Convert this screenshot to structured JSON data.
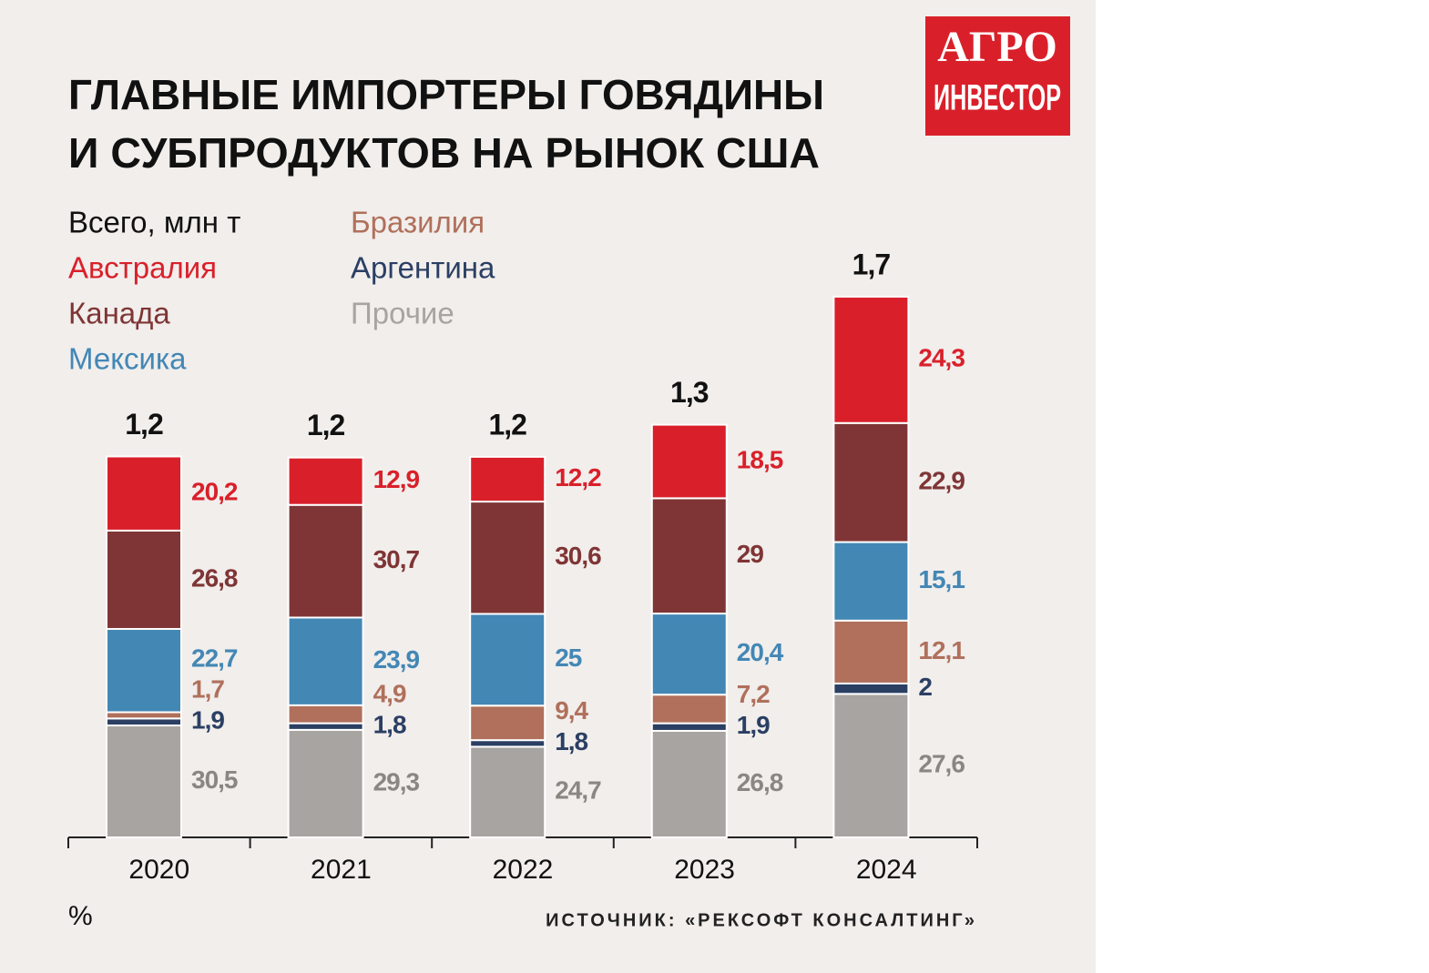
{
  "chart_data": {
    "type": "stacked-bar",
    "title": [
      "ГЛАВНЫЕ ИМПОРТЕРЫ ГОВЯДИНЫ",
      "И СУБПРОДУКТОВ НА РЫНОК США"
    ],
    "brand": [
      "АГРО",
      "ИНВЕСТОР"
    ],
    "unit_label": "%",
    "source": "ИСТОЧНИК: «РЕКСОФТ КОНСАЛТИНГ»",
    "categories": [
      "2020",
      "2021",
      "2022",
      "2023",
      "2024"
    ],
    "totals": {
      "name": "Всего, млн т",
      "color": "#111111",
      "values": [
        1.2,
        1.2,
        1.2,
        1.3,
        1.7
      ],
      "value_labels": [
        "1,2",
        "1,2",
        "1,2",
        "1,3",
        "1,7"
      ]
    },
    "series": [
      {
        "name": "Австралия",
        "color": "#d9202a",
        "values": [
          20.2,
          12.9,
          12.2,
          18.5,
          24.3
        ],
        "value_labels": [
          "20,2",
          "12,9",
          "12,2",
          "18,5",
          "24,3"
        ]
      },
      {
        "name": "Канада",
        "color": "#7f3535",
        "values": [
          26.8,
          30.7,
          30.6,
          29,
          22.9
        ],
        "value_labels": [
          "26,8",
          "30,7",
          "30,6",
          "29",
          "22,9"
        ]
      },
      {
        "name": "Мексика",
        "color": "#4387b5",
        "values": [
          22.7,
          23.9,
          25,
          20.4,
          15.1
        ],
        "value_labels": [
          "22,7",
          "23,9",
          "25",
          "20,4",
          "15,1"
        ]
      },
      {
        "name": "Бразилия",
        "color": "#b0705b",
        "values": [
          1.7,
          4.9,
          9.4,
          7.2,
          12.1
        ],
        "value_labels": [
          "1,7",
          "4,9",
          "9,4",
          "7,2",
          "12,1"
        ]
      },
      {
        "name": "Аргентина",
        "color": "#2b3f63",
        "values": [
          1.9,
          1.8,
          1.8,
          1.9,
          2
        ],
        "value_labels": [
          "1,9",
          "1,8",
          "1,8",
          "1,9",
          "2"
        ]
      },
      {
        "name": "Прочие",
        "color": "#a8a4a1",
        "values": [
          30.5,
          29.3,
          24.7,
          26.8,
          27.6
        ],
        "value_labels": [
          "30,5",
          "29,3",
          "24,7",
          "26,8",
          "27,6"
        ]
      }
    ]
  }
}
